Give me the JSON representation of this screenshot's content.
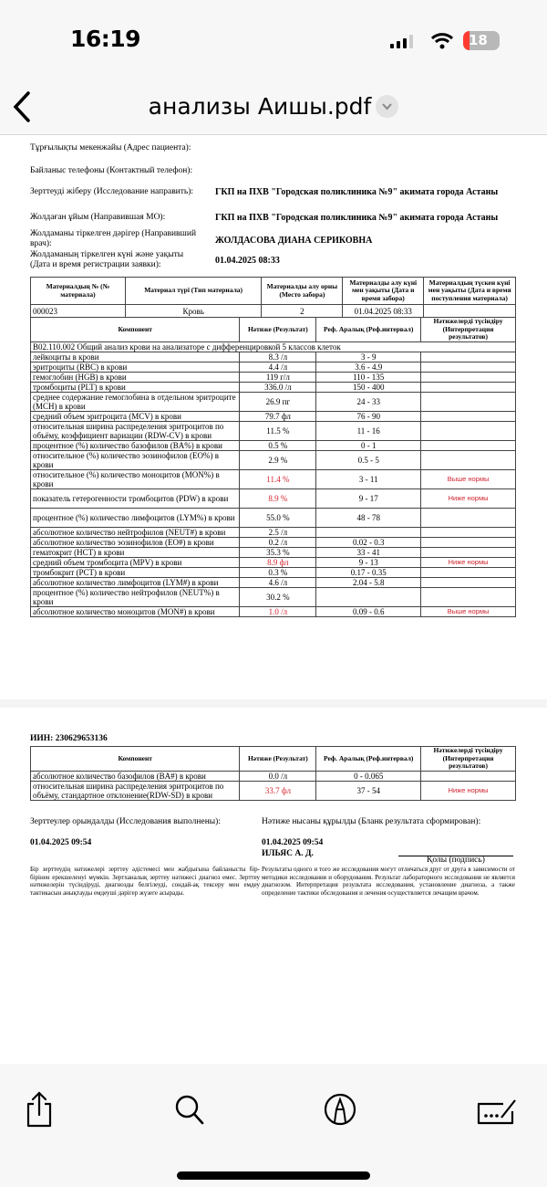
{
  "status_bar": {
    "time": "16:19",
    "battery": "18",
    "battery_color": "#ff3b30"
  },
  "nav": {
    "back_icon": "chevron-left-icon",
    "title": "анализы Аишы.pdf",
    "menu_icon": "chevron-down-icon"
  },
  "page1": {
    "fields": [
      {
        "label": "Тұрғылықты мекенжайы (Адрес пациента):",
        "value": ""
      },
      {
        "label": "Байланыс телефоны (Контактный телефон):",
        "value": ""
      },
      {
        "label": "Зерттеуді жіберу (Исследование направить):",
        "value": "ГКП на ПХВ \"Городская поликлиника №9\" акимата города Астаны"
      },
      {
        "label": "Жолдаған ұйым (Направившая МО):",
        "value": "ГКП на ПХВ \"Городская поликлиника №9\" акимата города Астаны"
      },
      {
        "label": "Жолдаманы тіркелген дәрігер (Направивший врач):",
        "value": "ЖОЛДАСОВА ДИАНА СЕРИКОВНА"
      },
      {
        "label": "Жолдаманың тіркелген күні және уақыты (Дата и время регистрации заявки):",
        "value": "01.04.2025 08:33"
      }
    ],
    "material_headers": [
      "Материалдың № (№ материала)",
      "Материал түрі (Тип материала)",
      "Материалды алу орны (Место забора)",
      "Материалды алу күні мен уақыты (Дата и время забора)",
      "Материалдың түскен күні мен уақыты (Дата и время поступления материала)"
    ],
    "material_row": [
      "000023",
      "Кровь",
      "2",
      "01.04.2025 08:33",
      ""
    ],
    "result_headers": [
      "Компонент",
      "Нәтиже (Результат)",
      "Реф. Аралық (Реф.интервал)",
      "Нәтижелерді түсіндіру (Интерпретация результатов)"
    ],
    "section": "В02.110.002 Общий анализ крови на анализаторе с дифференцировкой 5 классов клеток",
    "rows": [
      {
        "name": "лейкоциты в крови",
        "result": "8.3 /л",
        "ref": "3 - 9",
        "interp": "",
        "abnormal": false
      },
      {
        "name": "эритроциты (RBC) в крови",
        "result": "4.4 /л",
        "ref": "3.6 - 4.9",
        "interp": "",
        "abnormal": false
      },
      {
        "name": "гемоглобин (HGB) в крови",
        "result": "119 г/л",
        "ref": "110 - 135",
        "interp": "",
        "abnormal": false
      },
      {
        "name": "тромбоциты (PLT) в крови",
        "result": "336.0 /л",
        "ref": "150 - 400",
        "interp": "",
        "abnormal": false
      },
      {
        "name": "среднее содержание гемоглобина в отдельном эритроците (MCH) в крови",
        "result": "26.9 пг",
        "ref": "24 - 33",
        "interp": "",
        "abnormal": false
      },
      {
        "name": "средний объем эритроцита (MCV) в крови",
        "result": "79.7 фл",
        "ref": "76 - 90",
        "interp": "",
        "abnormal": false
      },
      {
        "name": "относительная ширина распределения эритроцитов по объёму, коэффициент вариации (RDW-CV) в крови",
        "result": "11.5 %",
        "ref": "11 - 16",
        "interp": "",
        "abnormal": false
      },
      {
        "name": "процентное (%) количество базофилов (BA%) в крови",
        "result": "0.5 %",
        "ref": "0 - 1",
        "interp": "",
        "abnormal": false
      },
      {
        "name": "относительное (%) количество эозинофилов (EO%) в крови",
        "result": "2.9 %",
        "ref": "0.5 - 5",
        "interp": "",
        "abnormal": false
      },
      {
        "name": "относительное (%) количество моноцитов (MON%) в крови",
        "result": "11.4 %",
        "ref": "3 - 11",
        "interp": "Выше нормы",
        "abnormal": true
      },
      {
        "name": "показатель гетерогенности тромбоцитов (PDW) в крови",
        "result": "8.9 %",
        "ref": "9 - 17",
        "interp": "Ниже нормы",
        "abnormal": true
      },
      {
        "name": "процентное (%) количество лимфоцитов (LYM%) в крови",
        "result": "55.0 %",
        "ref": "48 - 78",
        "interp": "",
        "abnormal": false
      },
      {
        "name": "абсолютное количество нейтрофилов (NEUT#) в крови",
        "result": "2.5 /л",
        "ref": "",
        "interp": "",
        "abnormal": false
      },
      {
        "name": "абсолютное количество эозинофилов (EO#) в крови",
        "result": "0.2 /л",
        "ref": "0.02 - 0.3",
        "interp": "",
        "abnormal": false
      },
      {
        "name": "гематокрит (HCT) в крови",
        "result": "35.3 %",
        "ref": "33 - 41",
        "interp": "",
        "abnormal": false
      },
      {
        "name": "средний объем тромбоцита (MPV) в крови",
        "result": "8.9 фл",
        "ref": "9 - 13",
        "interp": "Ниже нормы",
        "abnormal": true
      },
      {
        "name": "тромбокрит (PCT) в крови",
        "result": "0.3 %",
        "ref": "0.17 - 0.35",
        "interp": "",
        "abnormal": false
      },
      {
        "name": "абсолютное количество лимфоцитов (LYM#) в крови",
        "result": "4.6 /л",
        "ref": "2.04 - 5.8",
        "interp": "",
        "abnormal": false
      },
      {
        "name": "процентное (%) количество нейтрофилов (NEUT%) в крови",
        "result": "30.2 %",
        "ref": "",
        "interp": "",
        "abnormal": false
      },
      {
        "name": "абсолютное количество моноцитов (MON#) в крови",
        "result": "1.0 /л",
        "ref": "0.09 - 0.6",
        "interp": "Выше нормы",
        "abnormal": true
      }
    ]
  },
  "page2": {
    "iin": "ИИН: 230629653136",
    "rows": [
      {
        "name": "абсолютное количество базофилов (BA#) в крови",
        "result": "0.0 /л",
        "ref": "0 - 0.065",
        "interp": "",
        "abnormal": false
      },
      {
        "name": "относительная ширина распределения эритроцитов по объёму, стандартное отклонение(RDW-SD) в крови",
        "result": "33.7 фл",
        "ref": "37 - 54",
        "interp": "Ниже нормы",
        "abnormal": true
      }
    ],
    "performed_label": "Зерттеулер орындалды (Исследования выполнены):",
    "performed_date": "01.04.2025 09:54",
    "formed_label": "Нәтиже нысаны құрылды (Бланк результата сформирован):",
    "formed_date": "01.04.2025 09:54",
    "signer": "ИЛЬЯС А. Д.",
    "signature_label": "Қолы (подпись)",
    "note_kz": "Бір зерттеудің нәтижелері зерттеу әдістемесі мен жабдығына байланысты бір-бірінен ерекшеленуі мүмкін. Зертханалық зерттеу нәтижесі диагноз емес. Зерттеу нәтижелерін түсіндіруді, диагнозды белгілеуді, сондай-ақ тексеру мен емдеу тактикасын анықтауды емдеуші дәрігер жүзеге асырады.",
    "note_ru": "Результаты одного и того же исследования могут отличаться друг от друга в зависимости от методики исследования и оборудования. Результат лабораторного исследования не является диагнозом. Интерпретация результата исследования, установление диагноза, а также определение тактики обследования и лечения осуществляется лечащим врачом."
  },
  "toolbar": {
    "share": "share-icon",
    "search": "search-icon",
    "markup": "markup-pen-icon",
    "sign": "signature-icon"
  }
}
